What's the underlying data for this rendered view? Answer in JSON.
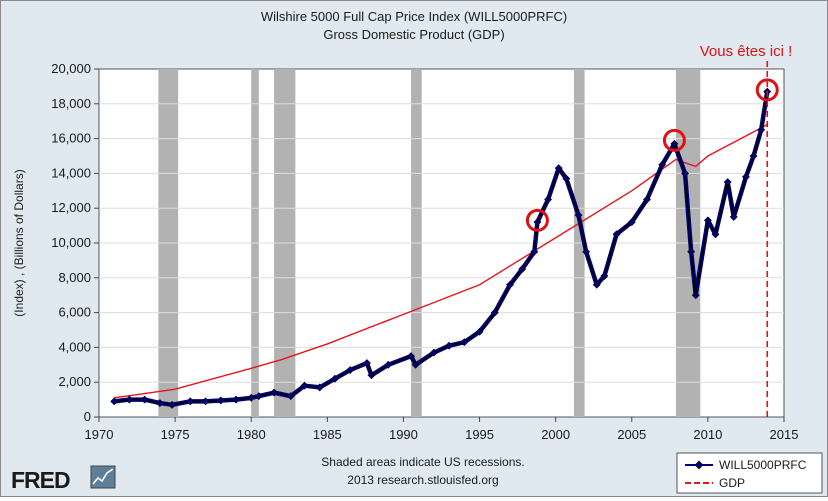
{
  "chart_data": {
    "type": "line",
    "title": "Wilshire 5000 Full Cap Price Index (WILL5000PRFC)",
    "subtitle": "Gross Domestic Product (GDP)",
    "ylabel": "(Index) , (Billions of Dollars)",
    "xlabel": "",
    "xlim": [
      1970,
      2015
    ],
    "ylim": [
      0,
      20000
    ],
    "x_ticks": [
      1970,
      1975,
      1980,
      1985,
      1990,
      1995,
      2000,
      2005,
      2010,
      2015
    ],
    "y_ticks": [
      0,
      2000,
      4000,
      6000,
      8000,
      10000,
      12000,
      14000,
      16000,
      18000,
      20000
    ],
    "y_tick_labels": [
      "0",
      "2,000",
      "4,000",
      "6,000",
      "8,000",
      "10,000",
      "12,000",
      "14,000",
      "16,000",
      "18,000",
      "20,000"
    ],
    "legend_position": "bottom-right",
    "recessions": [
      [
        1973.9,
        1975.2
      ],
      [
        1980.0,
        1980.5
      ],
      [
        1981.5,
        1982.9
      ],
      [
        1990.5,
        1991.2
      ],
      [
        2001.2,
        2001.9
      ],
      [
        2007.9,
        2009.5
      ]
    ],
    "series": [
      {
        "name": "WILL5000PRFC",
        "color": "#000080",
        "marker": "diamond",
        "x": [
          1971.0,
          1972.0,
          1973.0,
          1974.0,
          1974.8,
          1976.0,
          1977.0,
          1978.0,
          1979.0,
          1980.0,
          1980.5,
          1981.5,
          1982.6,
          1983.5,
          1984.5,
          1985.5,
          1986.5,
          1987.6,
          1987.9,
          1989.0,
          1990.5,
          1990.8,
          1992.0,
          1993.0,
          1994.0,
          1995.0,
          1996.0,
          1997.0,
          1997.8,
          1998.6,
          1998.8,
          1999.5,
          2000.2,
          2000.7,
          2001.5,
          2002.0,
          2002.7,
          2003.2,
          2004.0,
          2005.0,
          2006.0,
          2007.0,
          2007.8,
          2008.5,
          2008.9,
          2009.2,
          2010.0,
          2010.5,
          2011.3,
          2011.7,
          2012.5,
          2013.0,
          2013.5,
          2013.9
        ],
        "values": [
          900,
          1000,
          1000,
          800,
          700,
          900,
          900,
          950,
          1000,
          1100,
          1200,
          1400,
          1200,
          1800,
          1700,
          2200,
          2700,
          3100,
          2400,
          3000,
          3500,
          3000,
          3700,
          4100,
          4300,
          4900,
          6000,
          7600,
          8500,
          9500,
          11200,
          12500,
          14300,
          13700,
          11600,
          9500,
          7600,
          8100,
          10500,
          11200,
          12500,
          14500,
          15700,
          14000,
          9500,
          7000,
          11300,
          10500,
          13500,
          11500,
          13800,
          15000,
          16500,
          18700
        ]
      },
      {
        "name": "GDP",
        "color": "#e8141e",
        "marker": "none",
        "x": [
          1971.0,
          1975.0,
          1980.0,
          1982.0,
          1985.0,
          1990.0,
          1995.0,
          2000.0,
          2005.0,
          2007.9,
          2009.2,
          2010.0,
          2013.9
        ],
        "values": [
          1100,
          1600,
          2800,
          3300,
          4200,
          5900,
          7600,
          10300,
          13000,
          14800,
          14400,
          15000,
          16800
        ]
      }
    ],
    "annotations": {
      "label": "Vous êtes ici !",
      "circled_points": [
        [
          1998.8,
          11300
        ],
        [
          2007.8,
          15900
        ],
        [
          2013.9,
          18800
        ]
      ],
      "marker_line_x": 2013.9
    },
    "footnote_1": "Shaded areas indicate US recessions.",
    "footnote_2": "2013 research.stlouisfed.org",
    "logo_text": "FRED"
  }
}
